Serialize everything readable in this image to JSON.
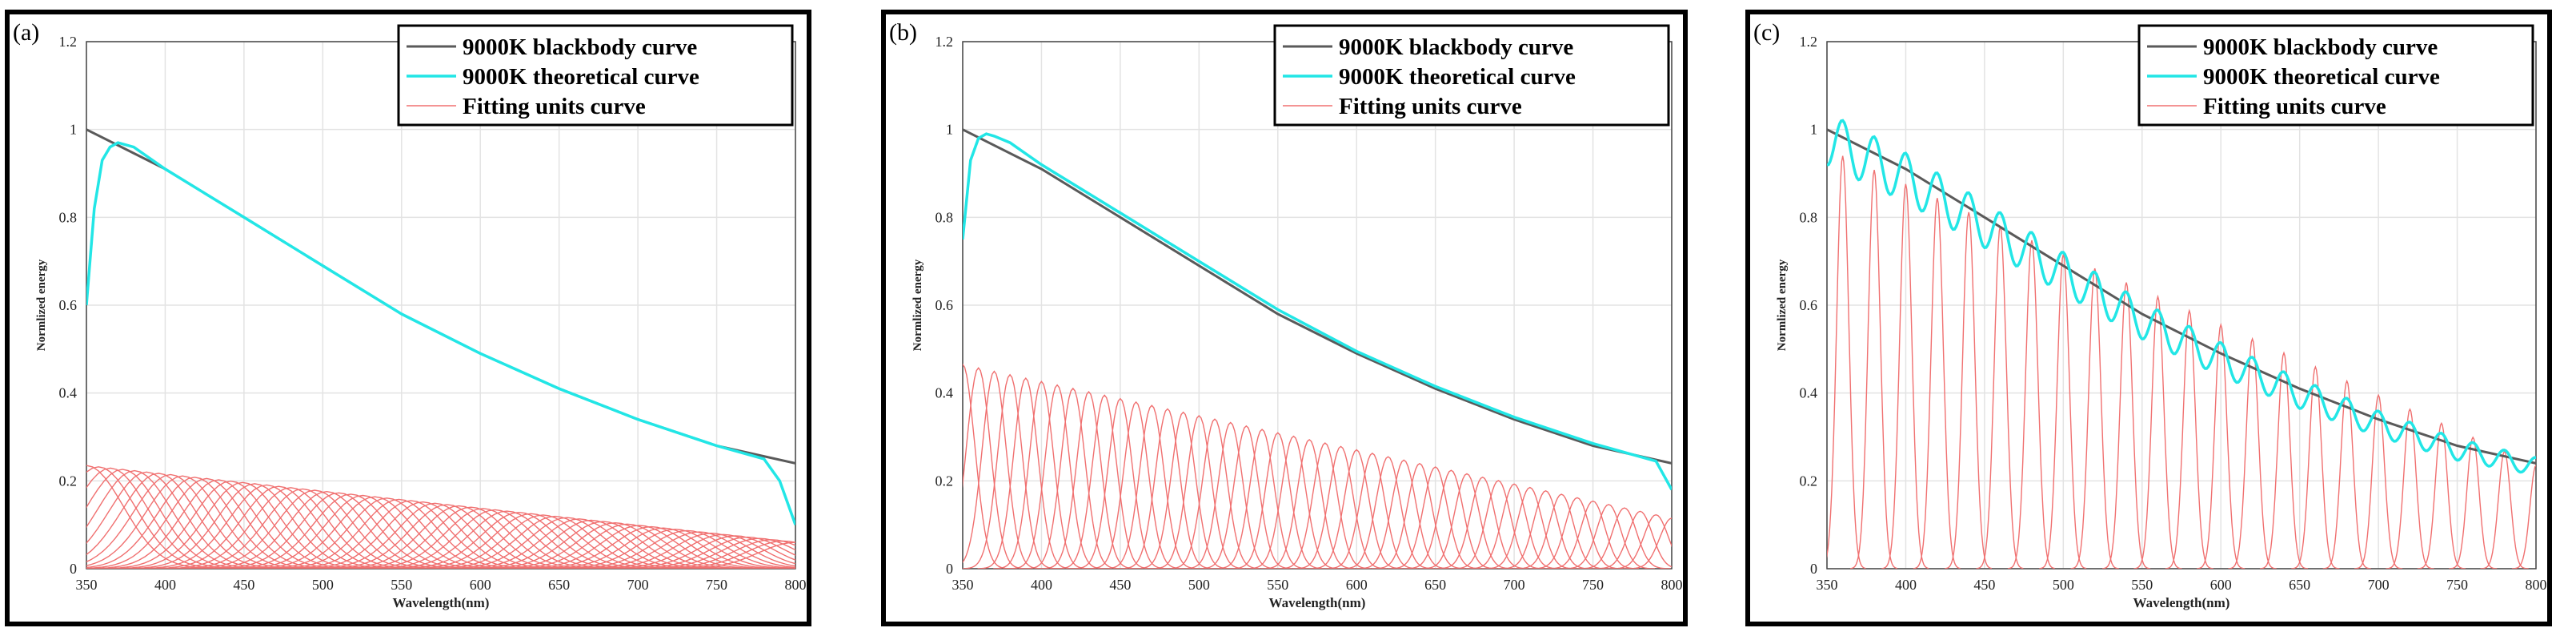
{
  "figure": {
    "panels": [
      "(a)",
      "(b)",
      "(c)"
    ]
  },
  "colors": {
    "blackbody": "#5a5a5a",
    "theoretical": "#22e6e6",
    "fitting": "#f07070",
    "grid": "#e3e3e3"
  },
  "chart_data": [
    {
      "type": "line",
      "panel_label": "(a)",
      "xlabel": "Wavelength(nm)",
      "ylabel": "Normlized energy",
      "xlim": [
        350,
        800
      ],
      "ylim": [
        0,
        1.2
      ],
      "xticks": [
        "350",
        "400",
        "450",
        "500",
        "550",
        "600",
        "650",
        "700",
        "750",
        "800"
      ],
      "yticks": [
        "0",
        "0.2",
        "0.4",
        "0.6",
        "0.8",
        "1",
        "1.2"
      ],
      "grid": true,
      "legend": [
        "9000K blackbody curve",
        "9000K theoretical curve",
        "Fitting units curve"
      ],
      "legend_position": "top-right",
      "series": [
        {
          "name": "9000K blackbody curve",
          "x": [
            350,
            400,
            450,
            500,
            550,
            600,
            650,
            700,
            750,
            800
          ],
          "y": [
            1.0,
            0.91,
            0.8,
            0.69,
            0.58,
            0.49,
            0.41,
            0.34,
            0.28,
            0.24
          ]
        },
        {
          "name": "9000K theoretical curve",
          "x": [
            350,
            355,
            360,
            365,
            370,
            380,
            400,
            450,
            500,
            550,
            600,
            650,
            700,
            750,
            780,
            790,
            800
          ],
          "y": [
            0.6,
            0.82,
            0.93,
            0.96,
            0.97,
            0.96,
            0.91,
            0.8,
            0.69,
            0.58,
            0.49,
            0.41,
            0.34,
            0.28,
            0.25,
            0.2,
            0.1
          ]
        },
        {
          "name": "Fitting units curve",
          "units": 60,
          "center_start": 350,
          "center_end": 800,
          "peak_start": 0.235,
          "peak_end": 0.06,
          "fwhm_nm": 55
        }
      ]
    },
    {
      "type": "line",
      "panel_label": "(b)",
      "xlabel": "Wavelength(nm)",
      "ylabel": "Normlized energy",
      "xlim": [
        350,
        800
      ],
      "ylim": [
        0,
        1.2
      ],
      "xticks": [
        "350",
        "400",
        "450",
        "500",
        "550",
        "600",
        "650",
        "700",
        "750",
        "800"
      ],
      "yticks": [
        "0",
        "0.2",
        "0.4",
        "0.6",
        "0.8",
        "1",
        "1.2"
      ],
      "grid": true,
      "legend": [
        "9000K blackbody curve",
        "9000K theoretical curve",
        "Fitting units curve"
      ],
      "legend_position": "top-right",
      "series": [
        {
          "name": "9000K blackbody curve",
          "x": [
            350,
            400,
            450,
            500,
            550,
            600,
            650,
            700,
            750,
            800
          ],
          "y": [
            1.0,
            0.91,
            0.8,
            0.69,
            0.58,
            0.49,
            0.41,
            0.34,
            0.28,
            0.24
          ]
        },
        {
          "name": "9000K theoretical curve",
          "x": [
            350,
            355,
            360,
            365,
            370,
            380,
            400,
            450,
            500,
            550,
            600,
            650,
            700,
            750,
            790,
            800
          ],
          "y": [
            0.75,
            0.93,
            0.98,
            0.99,
            0.985,
            0.97,
            0.92,
            0.81,
            0.7,
            0.59,
            0.495,
            0.415,
            0.345,
            0.285,
            0.245,
            0.18
          ]
        },
        {
          "name": "Fitting units curve",
          "units": 46,
          "center_start": 350,
          "center_end": 800,
          "peak_start": 0.465,
          "peak_end": 0.115,
          "fwhm_nm": 18
        }
      ]
    },
    {
      "type": "line",
      "panel_label": "(c)",
      "xlabel": "Wavelength(nm)",
      "ylabel": "Normlized energy",
      "xlim": [
        350,
        800
      ],
      "ylim": [
        0,
        1.2
      ],
      "xticks": [
        "350",
        "400",
        "450",
        "500",
        "550",
        "600",
        "650",
        "700",
        "750",
        "800"
      ],
      "yticks": [
        "0",
        "0.2",
        "0.4",
        "0.6",
        "0.8",
        "1",
        "1.2"
      ],
      "grid": true,
      "legend": [
        "9000K blackbody curve",
        "9000K theoretical curve",
        "Fitting units curve"
      ],
      "legend_position": "top-right",
      "series": [
        {
          "name": "9000K blackbody curve",
          "x": [
            350,
            400,
            450,
            500,
            550,
            600,
            650,
            700,
            750,
            800
          ],
          "y": [
            1.0,
            0.91,
            0.8,
            0.69,
            0.58,
            0.49,
            0.41,
            0.34,
            0.28,
            0.24
          ]
        },
        {
          "name": "9000K theoretical curve",
          "ripple_period_nm": 20,
          "ripple_amplitude_start": 0.06,
          "ripple_amplitude_end": 0.02,
          "x": [
            350,
            360,
            380,
            400,
            420,
            440,
            460,
            480,
            500,
            520,
            540,
            560,
            580,
            600,
            620,
            640,
            660,
            680,
            700,
            720,
            740,
            760,
            780,
            800
          ],
          "y": [
            0.96,
            1.06,
            1.02,
            0.97,
            0.93,
            0.89,
            0.84,
            0.8,
            0.76,
            0.71,
            0.67,
            0.63,
            0.59,
            0.55,
            0.52,
            0.48,
            0.45,
            0.41,
            0.38,
            0.36,
            0.33,
            0.3,
            0.27,
            0.25
          ]
        },
        {
          "name": "Fitting units curve",
          "units": 23,
          "center_start": 360,
          "center_end": 800,
          "peak_start": 0.94,
          "peak_end": 0.235,
          "fwhm_nm": 9
        }
      ]
    }
  ]
}
